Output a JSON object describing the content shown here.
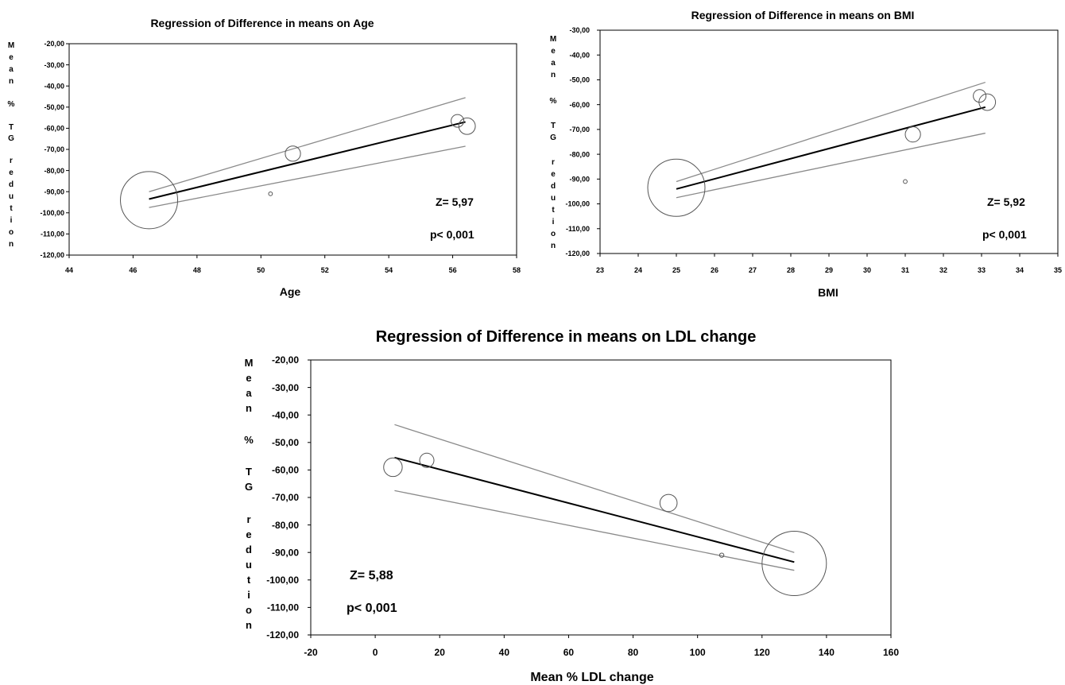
{
  "chart_data": [
    {
      "type": "scatter",
      "title": "Regression of Difference in means on Age",
      "xlabel": "Age",
      "ylabel": "Mean % TG redution",
      "xlim": [
        44,
        58
      ],
      "ylim": [
        -120,
        -20
      ],
      "x_ticks": [
        "44",
        "46",
        "48",
        "50",
        "52",
        "54",
        "56",
        "58"
      ],
      "y_ticks": [
        "-20,00",
        "-30,00",
        "-40,00",
        "-50,00",
        "-60,00",
        "-70,00",
        "-80,00",
        "-90,00",
        "-100,00",
        "-110,00",
        "-120,00"
      ],
      "points": [
        {
          "x": 46.5,
          "y": -94,
          "weight": 4.5
        },
        {
          "x": 51.0,
          "y": -72,
          "weight": 1.2
        },
        {
          "x": 50.3,
          "y": -91,
          "weight": 0.3
        },
        {
          "x": 56.15,
          "y": -56.5,
          "weight": 1.0
        },
        {
          "x": 56.45,
          "y": -59,
          "weight": 1.3
        }
      ],
      "regression": {
        "x": [
          46.5,
          56.4
        ],
        "y": [
          -93.5,
          -57
        ]
      },
      "ci_upper": {
        "x": [
          46.5,
          56.4
        ],
        "y": [
          -90,
          -45.5
        ]
      },
      "ci_lower": {
        "x": [
          46.5,
          56.4
        ],
        "y": [
          -97.5,
          -68.5
        ]
      },
      "z_label": "Z= 5,97",
      "p_label": "p< 0,001"
    },
    {
      "type": "scatter",
      "title": "Regression of Difference in means on BMI",
      "xlabel": "BMI",
      "ylabel": "Mean % TG redution",
      "xlim": [
        23,
        35
      ],
      "ylim": [
        -120,
        -30
      ],
      "x_ticks": [
        "23",
        "24",
        "25",
        "26",
        "27",
        "28",
        "29",
        "30",
        "31",
        "32",
        "33",
        "34",
        "35"
      ],
      "y_ticks": [
        "-30,00",
        "-40,00",
        "-50,00",
        "-60,00",
        "-70,00",
        "-80,00",
        "-90,00",
        "-100,00",
        "-110,00",
        "-120,00"
      ],
      "points": [
        {
          "x": 25.0,
          "y": -93.5,
          "weight": 4.5
        },
        {
          "x": 31.2,
          "y": -72,
          "weight": 1.2
        },
        {
          "x": 31.0,
          "y": -91,
          "weight": 0.3
        },
        {
          "x": 32.95,
          "y": -56.5,
          "weight": 1.0
        },
        {
          "x": 33.15,
          "y": -59,
          "weight": 1.3
        }
      ],
      "regression": {
        "x": [
          25.0,
          33.1
        ],
        "y": [
          -94,
          -61
        ]
      },
      "ci_upper": {
        "x": [
          25.0,
          33.1
        ],
        "y": [
          -91,
          -51
        ]
      },
      "ci_lower": {
        "x": [
          25.0,
          33.1
        ],
        "y": [
          -97.5,
          -71.5
        ]
      },
      "z_label": "Z= 5,92",
      "p_label": "p< 0,001"
    },
    {
      "type": "scatter",
      "title": "Regression of Difference in means on LDL change",
      "xlabel": "Mean % LDL change",
      "ylabel": "Mean % TG redution",
      "xlim": [
        -20,
        160
      ],
      "ylim": [
        -120,
        -20
      ],
      "x_ticks": [
        "-20",
        "0",
        "20",
        "40",
        "60",
        "80",
        "100",
        "120",
        "140",
        "160"
      ],
      "y_ticks": [
        "-20,00",
        "-30,00",
        "-40,00",
        "-50,00",
        "-60,00",
        "-70,00",
        "-80,00",
        "-90,00",
        "-100,00",
        "-110,00",
        "-120,00"
      ],
      "points": [
        {
          "x": 5.5,
          "y": -59,
          "weight": 1.3
        },
        {
          "x": 16,
          "y": -56.5,
          "weight": 1.0
        },
        {
          "x": 91,
          "y": -72,
          "weight": 1.2
        },
        {
          "x": 107.5,
          "y": -91,
          "weight": 0.3
        },
        {
          "x": 130,
          "y": -94,
          "weight": 4.5
        }
      ],
      "regression": {
        "x": [
          6,
          130
        ],
        "y": [
          -55.5,
          -93.5
        ]
      },
      "ci_upper": {
        "x": [
          6,
          130
        ],
        "y": [
          -43.5,
          -90
        ]
      },
      "ci_lower": {
        "x": [
          6,
          130
        ],
        "y": [
          -67.5,
          -96.5
        ]
      },
      "z_label": "Z= 5,88",
      "p_label": "p< 0,001"
    }
  ]
}
